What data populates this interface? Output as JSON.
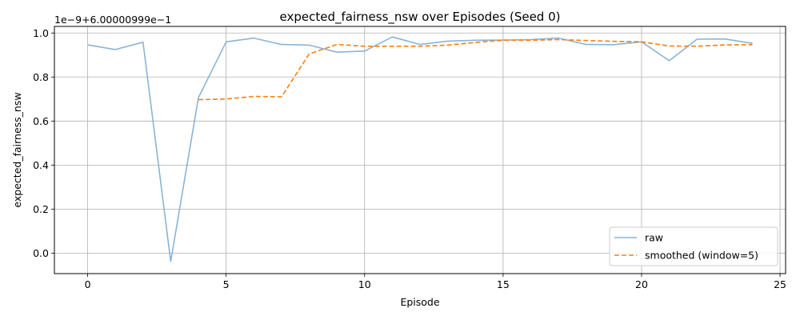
{
  "chart_data": {
    "type": "line",
    "title": "expected_fairness_nsw over Episodes (Seed 0)",
    "xlabel": "Episode",
    "ylabel": "expected_fairness_nsw",
    "offset_text": "1e−9+6.00000999e−1",
    "xlim": [
      -1.2,
      25.2
    ],
    "ylim": [
      -0.093,
      1.03
    ],
    "xticks": [
      0,
      5,
      10,
      15,
      20,
      25
    ],
    "yticks": [
      0.0,
      0.2,
      0.4,
      0.6,
      0.8,
      1.0
    ],
    "ytick_labels": [
      "0.0",
      "0.2",
      "0.4",
      "0.6",
      "0.8",
      "1.0"
    ],
    "grid": true,
    "legend_position": "lower-right",
    "series": [
      {
        "name": "raw",
        "color": "#8ab4d5",
        "style": "solid",
        "x": [
          0,
          1,
          2,
          3,
          4,
          5,
          6,
          7,
          8,
          9,
          10,
          11,
          12,
          13,
          14,
          15,
          16,
          17,
          18,
          19,
          20,
          21,
          22,
          23,
          24
        ],
        "y": [
          0.946,
          0.925,
          0.958,
          -0.038,
          0.706,
          0.96,
          0.977,
          0.948,
          0.945,
          0.913,
          0.918,
          0.982,
          0.948,
          0.963,
          0.967,
          0.968,
          0.97,
          0.977,
          0.948,
          0.947,
          0.96,
          0.874,
          0.972,
          0.973,
          0.953
        ]
      },
      {
        "name": "smoothed (window=5)",
        "color": "#ff7f0e",
        "style": "dashed",
        "x": [
          4,
          5,
          6,
          7,
          8,
          9,
          10,
          11,
          12,
          13,
          14,
          15,
          16,
          17,
          18,
          19,
          20,
          21,
          22,
          23,
          24
        ],
        "y": [
          0.697,
          0.7,
          0.712,
          0.71,
          0.905,
          0.948,
          0.94,
          0.94,
          0.94,
          0.945,
          0.957,
          0.967,
          0.967,
          0.97,
          0.966,
          0.962,
          0.96,
          0.941,
          0.94,
          0.946,
          0.947
        ]
      }
    ]
  }
}
